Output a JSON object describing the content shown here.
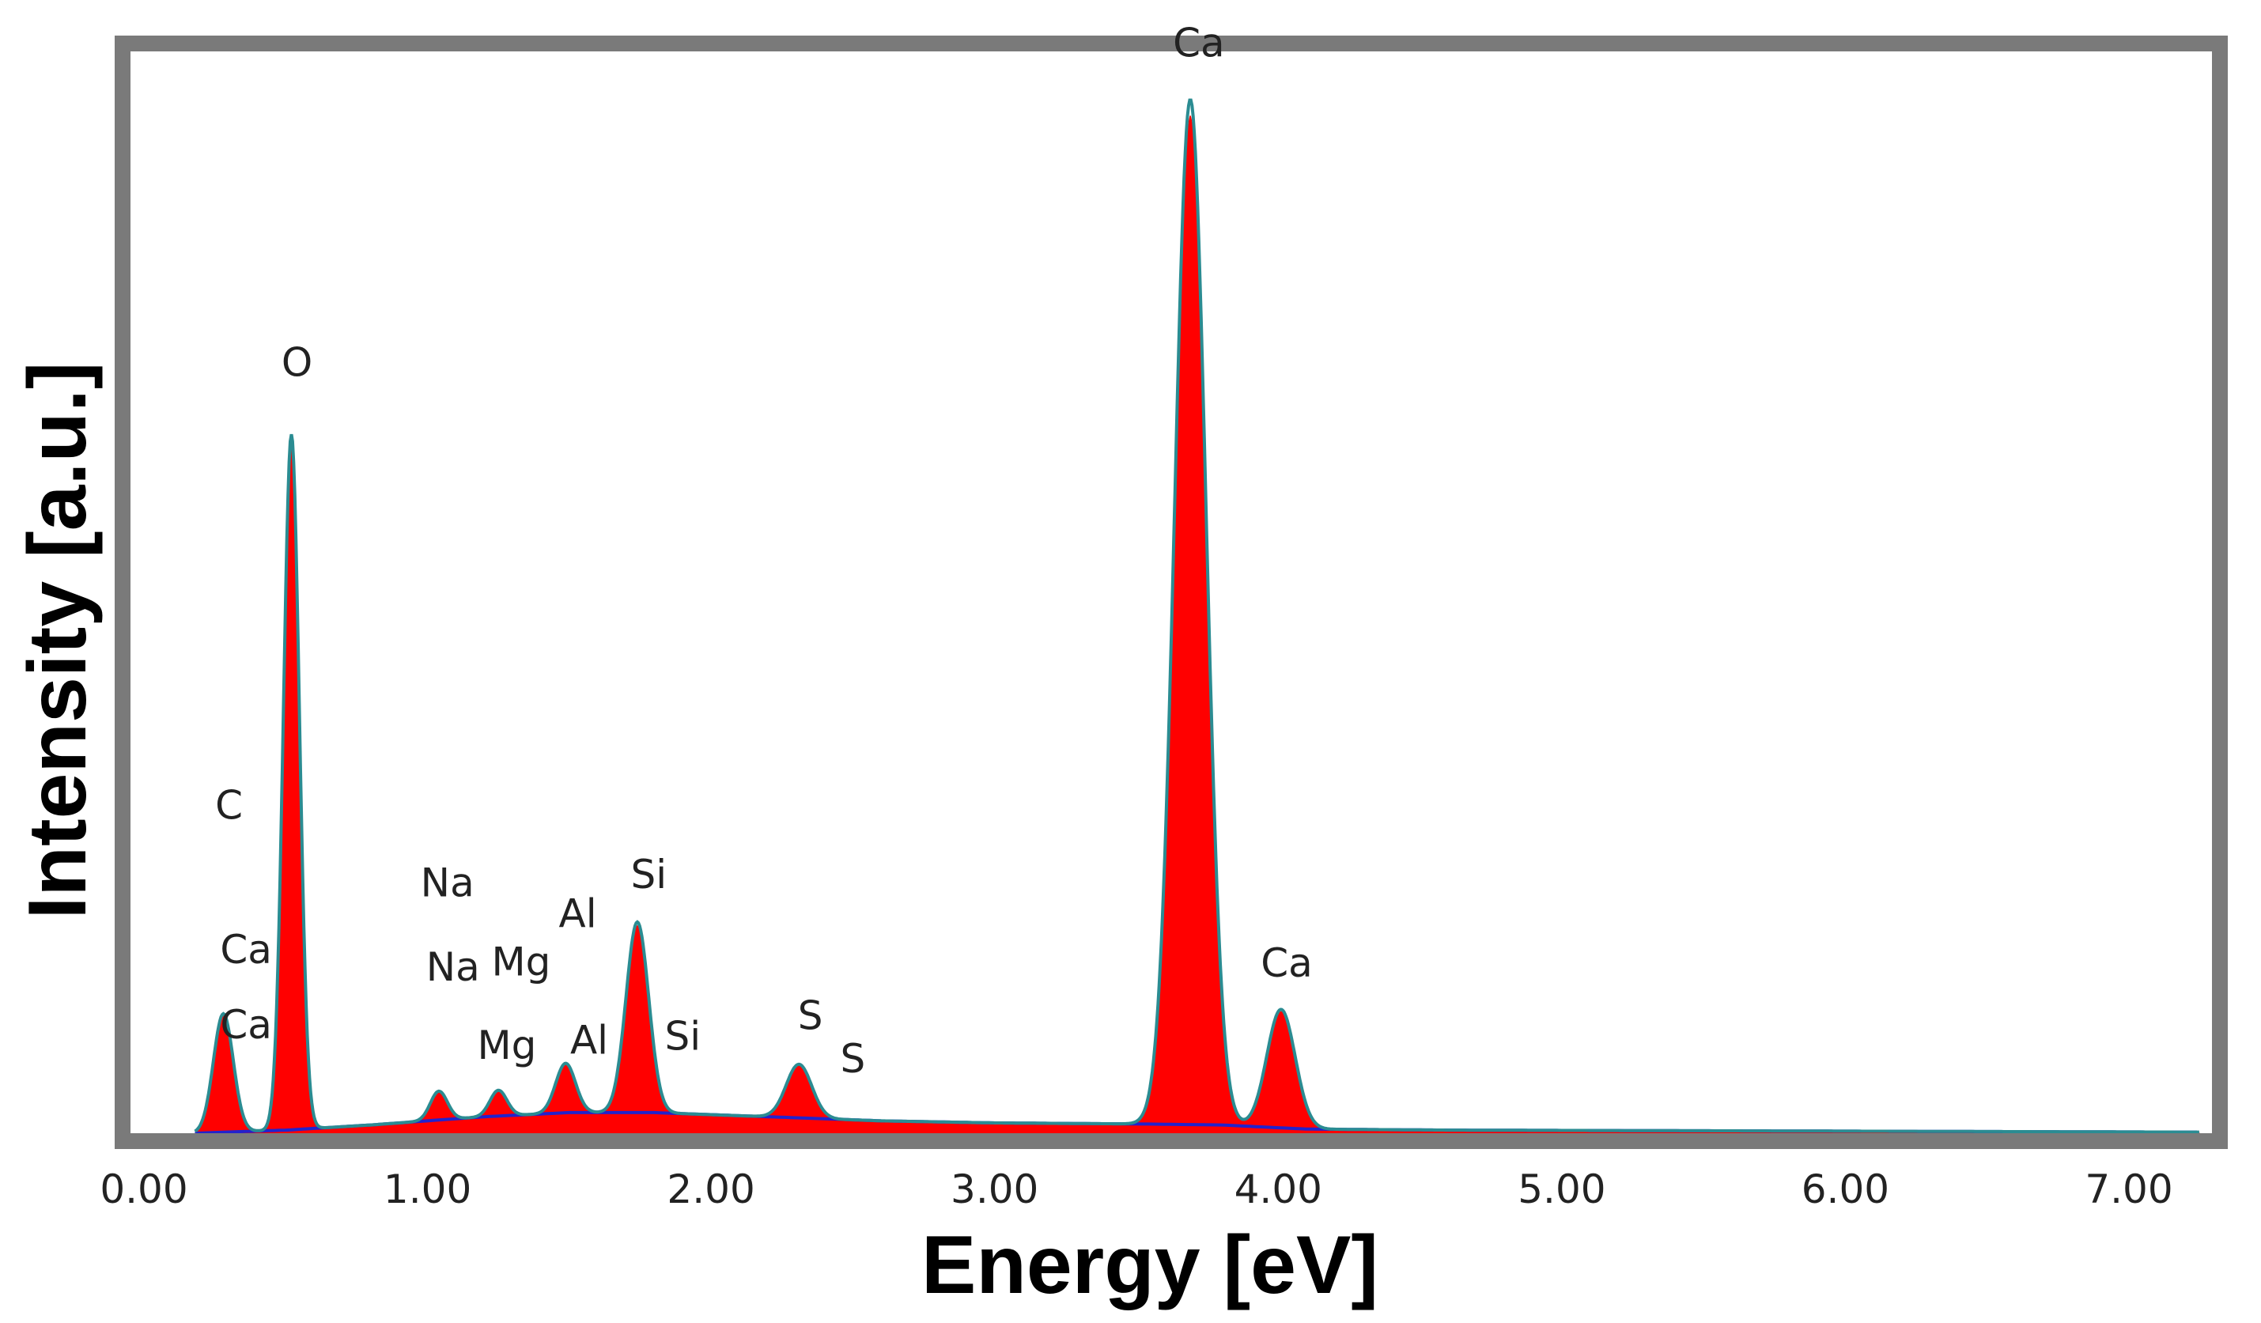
{
  "chart_data": {
    "type": "area",
    "title": "",
    "xlabel": "Energy [eV]",
    "ylabel": "Intensity [a.u.]",
    "xlim": [
      0,
      7.3
    ],
    "ylim": [
      0,
      1.05
    ],
    "x_ticks": [
      0,
      1,
      2,
      3,
      4,
      5,
      6,
      7
    ],
    "x_tick_labels": [
      "0.00",
      "1.00",
      "2.00",
      "3.00",
      "4.00",
      "5.00",
      "6.00",
      "7.00"
    ],
    "grid": false,
    "legend": "none",
    "colors": {
      "frame": "#7a7a7a",
      "spectrum_fill": "#ff0000",
      "fit_line": "#2b8c92",
      "background_line": "#2222cc"
    },
    "peaks": [
      {
        "element": "C/Ca",
        "energy": 0.28,
        "intensity": 0.115,
        "width": 0.035
      },
      {
        "element": "O",
        "energy": 0.52,
        "intensity": 0.675,
        "width": 0.028
      },
      {
        "element": "Na",
        "energy": 1.04,
        "intensity": 0.028,
        "width": 0.03
      },
      {
        "element": "Mg",
        "energy": 1.25,
        "intensity": 0.025,
        "width": 0.03
      },
      {
        "element": "Al",
        "energy": 1.487,
        "intensity": 0.048,
        "width": 0.035
      },
      {
        "element": "Si",
        "energy": 1.74,
        "intensity": 0.185,
        "width": 0.04
      },
      {
        "element": "S",
        "energy": 2.31,
        "intensity": 0.052,
        "width": 0.045
      },
      {
        "element": "Ca",
        "energy": 3.69,
        "intensity": 0.995,
        "width": 0.055
      },
      {
        "element": "Ca",
        "energy": 4.01,
        "intensity": 0.115,
        "width": 0.05
      }
    ],
    "background": [
      [
        0.18,
        0.0
      ],
      [
        0.5,
        0.003
      ],
      [
        0.8,
        0.008
      ],
      [
        1.2,
        0.016
      ],
      [
        1.5,
        0.02
      ],
      [
        1.8,
        0.02
      ],
      [
        2.2,
        0.016
      ],
      [
        2.6,
        0.012
      ],
      [
        3.0,
        0.01
      ],
      [
        3.5,
        0.009
      ],
      [
        3.8,
        0.008
      ],
      [
        4.1,
        0.004
      ],
      [
        4.6,
        0.003
      ],
      [
        6.0,
        0.002
      ],
      [
        7.3,
        0.001
      ]
    ],
    "annotations": [
      {
        "text": "C",
        "x": 0.3,
        "y": 0.305
      },
      {
        "text": "Ca",
        "x": 0.36,
        "y": 0.165
      },
      {
        "text": "Ca",
        "x": 0.36,
        "y": 0.092
      },
      {
        "text": "O",
        "x": 0.54,
        "y": 0.735
      },
      {
        "text": "Na",
        "x": 1.07,
        "y": 0.23
      },
      {
        "text": "Na",
        "x": 1.09,
        "y": 0.148
      },
      {
        "text": "Mg",
        "x": 1.33,
        "y": 0.153
      },
      {
        "text": "Mg",
        "x": 1.28,
        "y": 0.072
      },
      {
        "text": "Al",
        "x": 1.53,
        "y": 0.2
      },
      {
        "text": "Al",
        "x": 1.57,
        "y": 0.077
      },
      {
        "text": "Si",
        "x": 1.78,
        "y": 0.238
      },
      {
        "text": "Si",
        "x": 1.9,
        "y": 0.081
      },
      {
        "text": "S",
        "x": 2.35,
        "y": 0.101
      },
      {
        "text": "S",
        "x": 2.5,
        "y": 0.059
      },
      {
        "text": "Ca",
        "x": 3.72,
        "y": 1.045
      },
      {
        "text": "Ca",
        "x": 4.03,
        "y": 0.152
      }
    ]
  }
}
